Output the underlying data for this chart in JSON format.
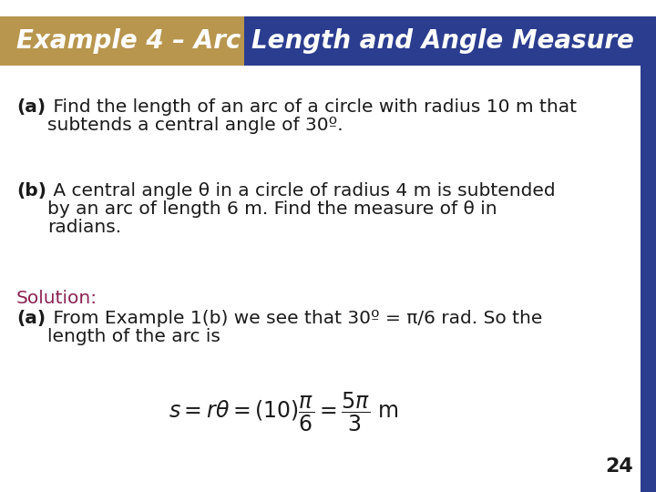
{
  "title_text1": "Example 4 – Arc",
  "title_text2": "Length and Angle Measure",
  "title_bg1": "#B8964E",
  "title_bg2": "#2B3D8F",
  "title_color": "white",
  "title_fontsize": 20,
  "body_bg": "white",
  "right_bar_color": "#2B3D8F",
  "part_a_bold": "(a)",
  "part_a_line1": " Find the length of an arc of a circle with radius 10 m that",
  "part_a_line2": "subtends a central angle of 30º.",
  "part_b_bold": "(b)",
  "part_b_line1": " A central angle θ in a circle of radius 4 m is subtended",
  "part_b_line2": "by an arc of length 6 m. Find the measure of θ in",
  "part_b_line3": "radians.",
  "solution_label": "Solution:",
  "solution_color": "#8B2252",
  "sol_a_bold": "(a)",
  "sol_a_line1": " From Example 1(b) we see that 30º = π/6 rad. So the",
  "sol_a_line2": "length of the arc is",
  "page_number": "24",
  "text_color": "#1a1a1a",
  "fontsize_body": 14.5
}
